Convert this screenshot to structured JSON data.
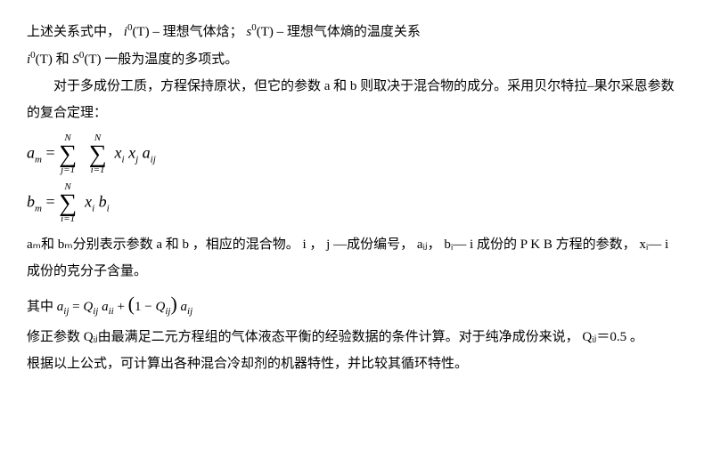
{
  "p1_a": "上述关系式中，",
  "p1_f1_var": "i",
  "p1_f1_sup": "0",
  "p1_f1_arg": "(T)",
  "p1_b": " – 理想气体焓；",
  "p1_f2_var": "s",
  "p1_f2_sup": "0",
  "p1_f2_arg": "(T)",
  "p1_c": " – 理想气体熵的温度关系",
  "p2_f1_var": "i",
  "p2_f1_sup": "0",
  "p2_f1_arg": "(T)",
  "p2_mid": "和",
  "p2_f2_var": "S",
  "p2_f2_sup": "0",
  "p2_f2_arg": "(T)",
  "p2_tail": "一般为温度的多项式。",
  "p3": "对于多成份工质，方程保持原状，但它的参数 a 和 b 则取决于混合物的成分。采用贝尔特拉–果尔采恩参数的复合定理：",
  "eq1": {
    "lhs_var": "a",
    "lhs_sub": "m",
    "eq": " = ",
    "sum1_top": "N",
    "sum1_bot": "j=1",
    "sum2_top": "N",
    "sum2_bot": "i=1",
    "term_x1": "x",
    "term_x1_sub": "i",
    "term_x2": "x",
    "term_x2_sub": "j",
    "term_a": "a",
    "term_a_sub": "ij"
  },
  "eq2": {
    "lhs_var": "b",
    "lhs_sub": "m",
    "eq": " = ",
    "sum_top": "N",
    "sum_bot": "i=1",
    "term_x": "x",
    "term_x_sub": "i",
    "term_b": "b",
    "term_b_sub": "i"
  },
  "p4": "aₘ和 bₘ分别表示参数 a 和 b ，相应的混合物。 i ， j —成份编号， aᵢⱼ， bᵢ— i 成份的 P K B 方程的参数， xᵢ— i 成份的克分子含量。",
  "eq3": {
    "pre": "其中",
    "a1": "a",
    "a1_sub": "ij",
    "eq1": " = ",
    "Q1": "Q",
    "Q1_sub": "ij",
    "a2": "a",
    "a2_sub": "ii",
    "plus": " + ",
    "lpar": "(",
    "one": "1",
    "minus": " − ",
    "Q2": "Q",
    "Q2_sub": "ij",
    "rpar": ")",
    "a3": "a",
    "a3_sub": "ij"
  },
  "p5": "修正参数 Qᵢⱼ由最满足二元方程组的气体液态平衡的经验数据的条件计算。对于纯净成份来说， Qᵢⱼ＝0.5 。",
  "p6": "根据以上公式，可计算出各种混合冷却剂的机器特性，并比较其循环特性。"
}
